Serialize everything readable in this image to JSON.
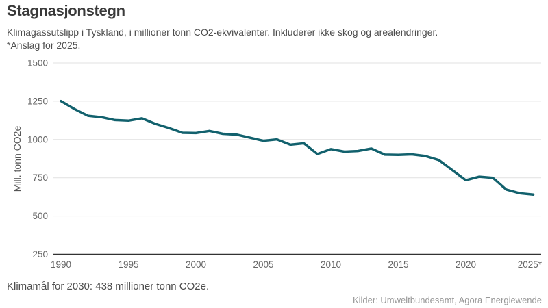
{
  "header": {
    "title": "Stagnasjonstegn",
    "subtitle_line1": "Klimagassutslipp i Tyskland, i millioner tonn CO2-ekvivalenter. Inkluderer ikke skog og arealendringer.",
    "subtitle_line2": "*Anslag for 2025."
  },
  "footer": {
    "note": "Klimamål for 2030: 438 millioner tonn CO2e.",
    "source": "Kilder: Umweltbundesamt, Agora Energiewende"
  },
  "chart_data": {
    "type": "line",
    "title": "Stagnasjonstegn",
    "xlabel": "",
    "ylabel": "Mill. tonn CO2e",
    "x": [
      1990,
      1991,
      1992,
      1993,
      1994,
      1995,
      1996,
      1997,
      1998,
      1999,
      2000,
      2001,
      2002,
      2003,
      2004,
      2005,
      2006,
      2007,
      2008,
      2009,
      2010,
      2011,
      2012,
      2013,
      2014,
      2015,
      2016,
      2017,
      2018,
      2019,
      2020,
      2021,
      2022,
      2023,
      2024,
      2025
    ],
    "series": [
      {
        "name": "Klimagassutslipp i Tyskland (mill. tonn CO2e)",
        "values": [
          1251,
          1199,
          1155,
          1146,
          1127,
          1123,
          1138,
          1102,
          1075,
          1044,
          1042,
          1056,
          1037,
          1032,
          1012,
          992,
          1001,
          966,
          975,
          905,
          937,
          921,
          925,
          941,
          901,
          900,
          903,
          892,
          866,
          800,
          734,
          757,
          750,
          673,
          649,
          640
        ]
      }
    ],
    "ylim": [
      250,
      1500
    ],
    "xlim": [
      1990,
      2025
    ],
    "yticks": [
      1500,
      1250,
      1000,
      750,
      500,
      250
    ],
    "xtick_values": [
      1990,
      1995,
      2000,
      2005,
      2010,
      2015,
      2020,
      2025
    ],
    "xtick_labels": [
      "1990",
      "1995",
      "2000",
      "2005",
      "2010",
      "2015",
      "2020",
      "2025*"
    ],
    "grid": "horizontal",
    "legend": "none",
    "last_point_note": "2025 er anslag",
    "colors": {
      "line": "#12616d",
      "grid": "#e1e1e1",
      "axis": "#333333",
      "tick_text": "#666666",
      "title_text": "#3a3a3a",
      "body_text": "#4d4d4d",
      "source_text": "#989898"
    }
  }
}
